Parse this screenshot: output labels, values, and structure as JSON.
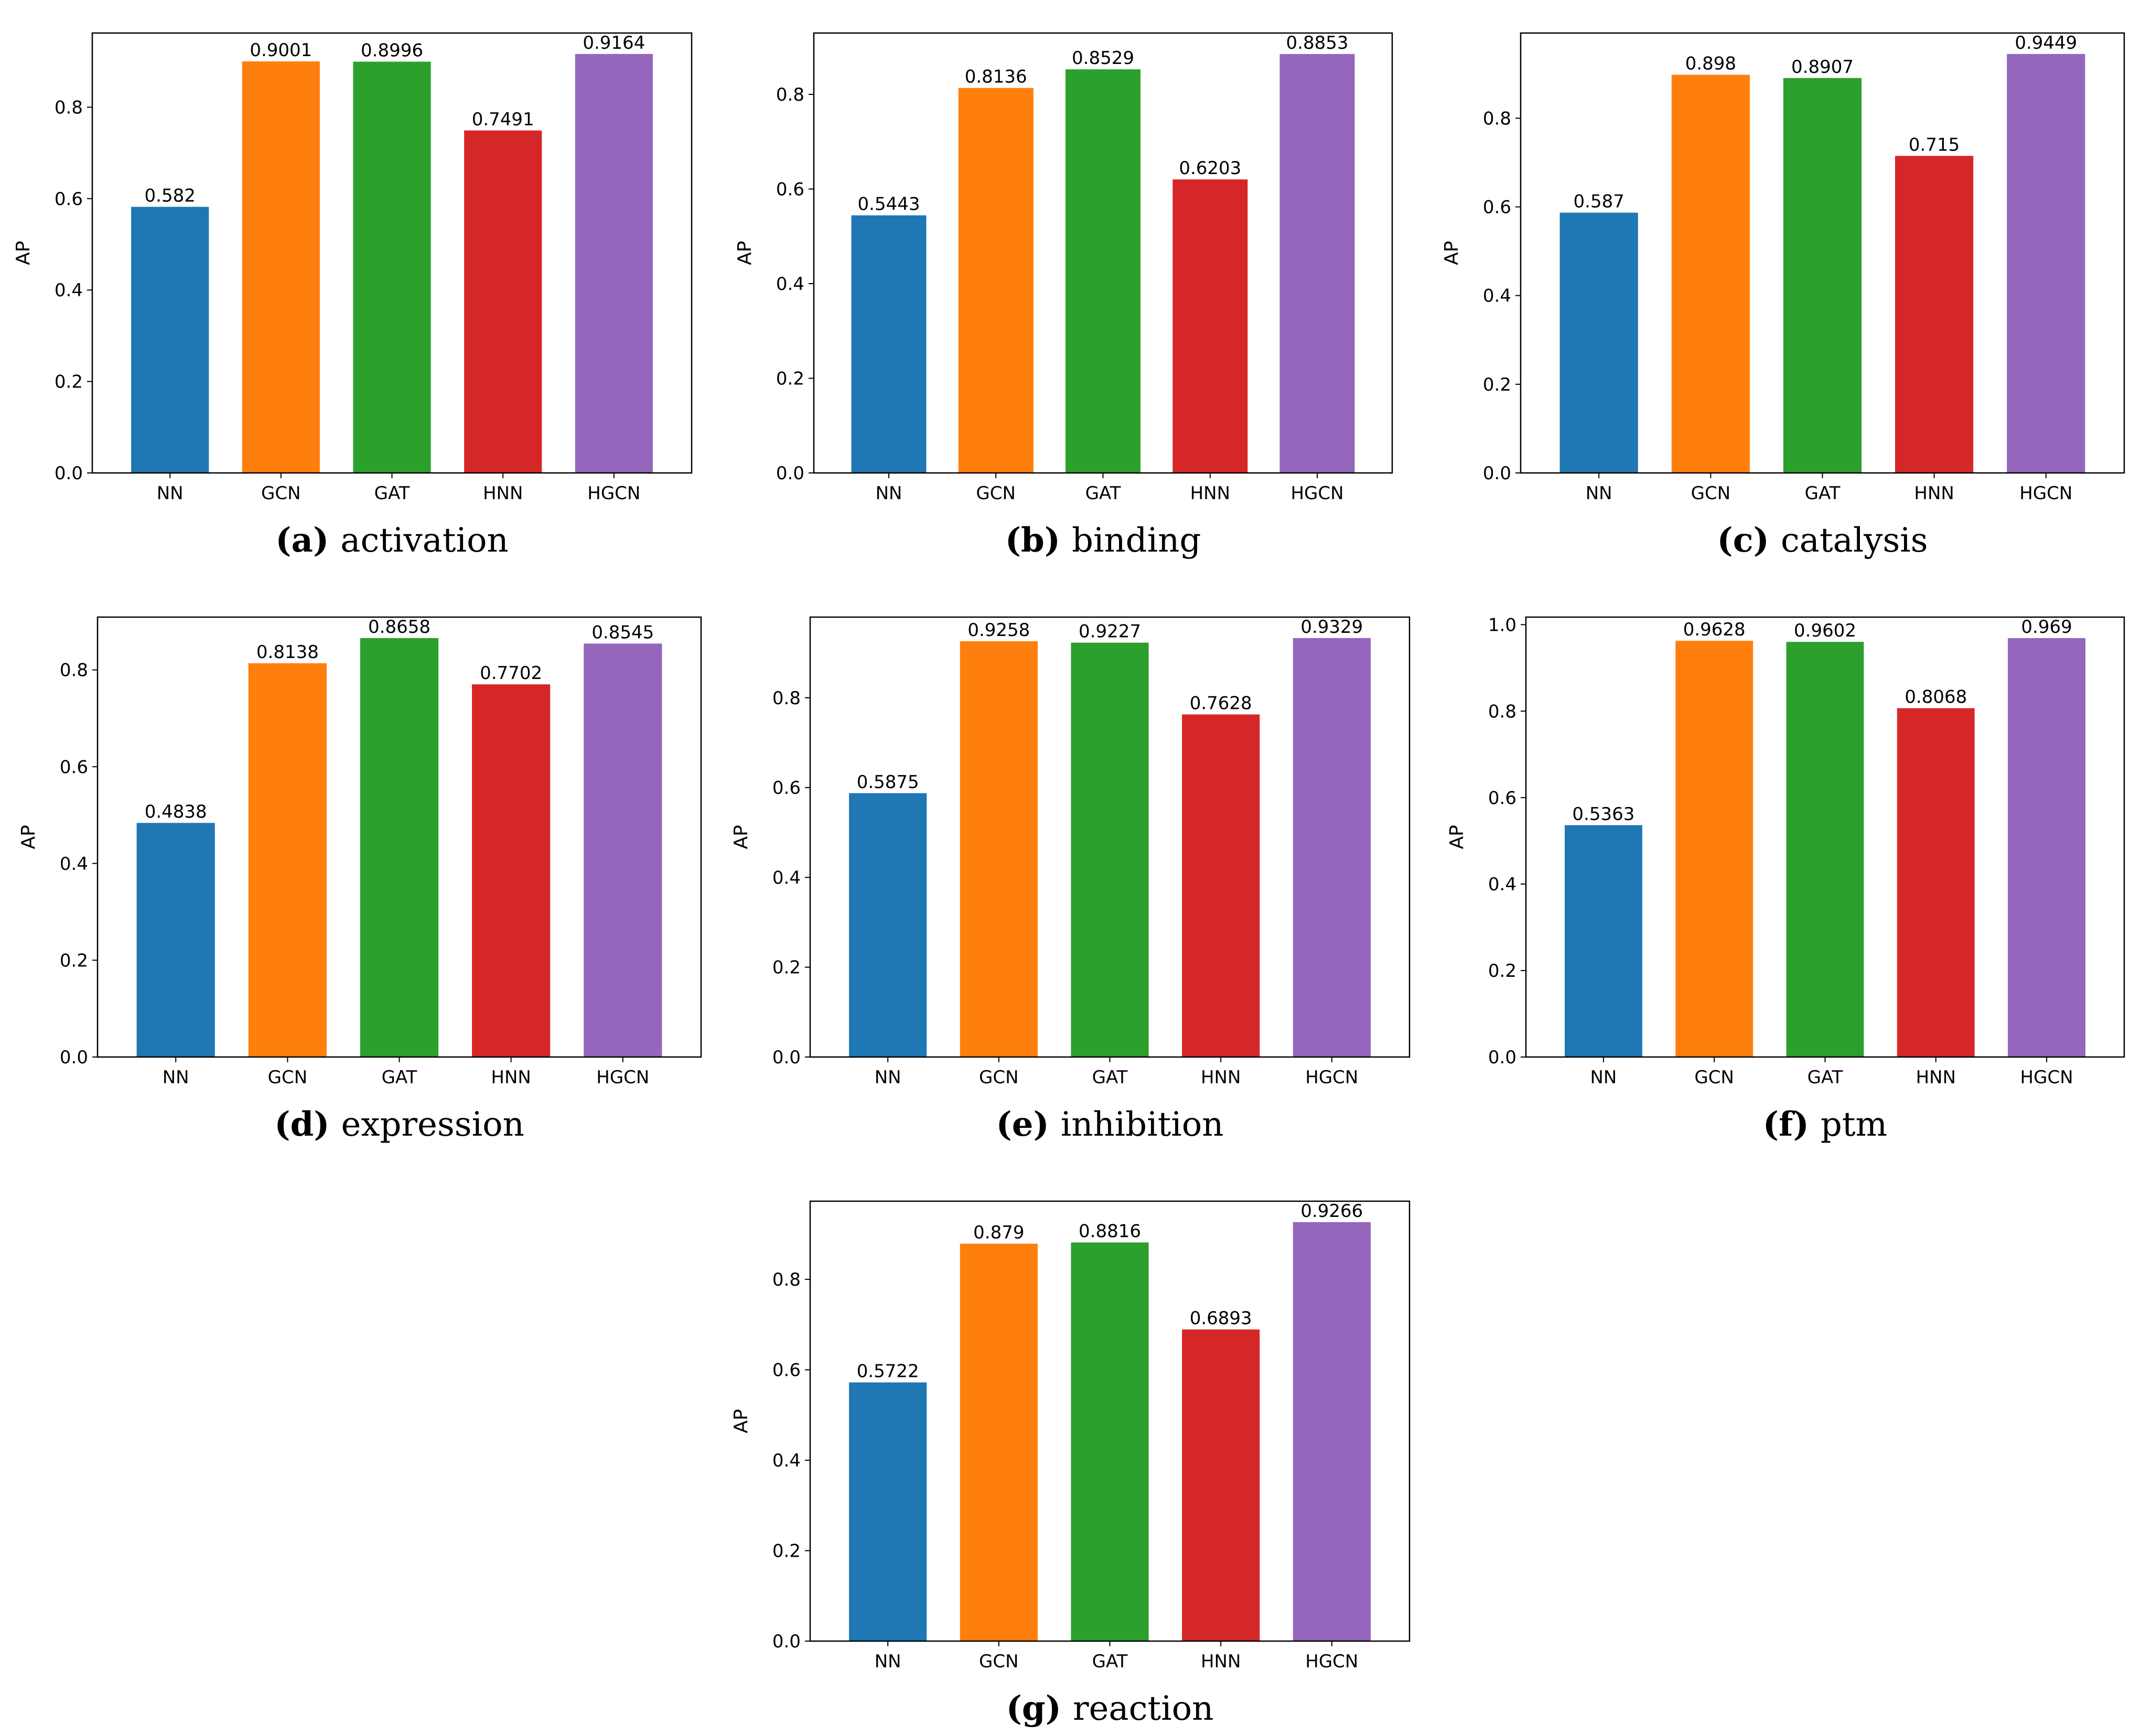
{
  "colors": {
    "NN": "#1f77b4",
    "GCN": "#ff7f0e",
    "GAT": "#2ca02c",
    "HNN": "#d62728",
    "HGCN": "#9467bd"
  },
  "chart_data": [
    {
      "type": "bar",
      "panel": "(a)",
      "caption": "activation",
      "ylabel": "AP",
      "xlabel": "",
      "categories": [
        "NN",
        "GCN",
        "GAT",
        "HNN",
        "HGCN"
      ],
      "values": [
        0.582,
        0.9001,
        0.8996,
        0.7491,
        0.9164
      ],
      "value_labels": [
        "0.582",
        "0.9001",
        "0.8996",
        "0.7491",
        "0.9164"
      ],
      "ylim": [
        0,
        0.9622
      ],
      "yticks": [
        0.0,
        0.2,
        0.4,
        0.6,
        0.8
      ],
      "ytick_labels": [
        "0.0",
        "0.2",
        "0.4",
        "0.6",
        "0.8"
      ],
      "grid": false,
      "legend": "none"
    },
    {
      "type": "bar",
      "panel": "(b)",
      "caption": "binding",
      "ylabel": "AP",
      "xlabel": "",
      "categories": [
        "NN",
        "GCN",
        "GAT",
        "HNN",
        "HGCN"
      ],
      "values": [
        0.5443,
        0.8136,
        0.8529,
        0.6203,
        0.8853
      ],
      "value_labels": [
        "0.5443",
        "0.8136",
        "0.8529",
        "0.6203",
        "0.8853"
      ],
      "ylim": [
        0,
        0.9296
      ],
      "yticks": [
        0.0,
        0.2,
        0.4,
        0.6,
        0.8
      ],
      "ytick_labels": [
        "0.0",
        "0.2",
        "0.4",
        "0.6",
        "0.8"
      ],
      "grid": false,
      "legend": "none"
    },
    {
      "type": "bar",
      "panel": "(c)",
      "caption": "catalysis",
      "ylabel": "AP",
      "xlabel": "",
      "categories": [
        "NN",
        "GCN",
        "GAT",
        "HNN",
        "HGCN"
      ],
      "values": [
        0.587,
        0.898,
        0.8907,
        0.715,
        0.9449
      ],
      "value_labels": [
        "0.587",
        "0.898",
        "0.8907",
        "0.715",
        "0.9449"
      ],
      "ylim": [
        0,
        0.9921
      ],
      "yticks": [
        0.0,
        0.2,
        0.4,
        0.6,
        0.8
      ],
      "ytick_labels": [
        "0.0",
        "0.2",
        "0.4",
        "0.6",
        "0.8"
      ],
      "grid": false,
      "legend": "none"
    },
    {
      "type": "bar",
      "panel": "(d)",
      "caption": "expression",
      "ylabel": "AP",
      "xlabel": "",
      "categories": [
        "NN",
        "GCN",
        "GAT",
        "HNN",
        "HGCN"
      ],
      "values": [
        0.4838,
        0.8138,
        0.8658,
        0.7702,
        0.8545
      ],
      "value_labels": [
        "0.4838",
        "0.8138",
        "0.8658",
        "0.7702",
        "0.8545"
      ],
      "ylim": [
        0,
        0.9091
      ],
      "yticks": [
        0.0,
        0.2,
        0.4,
        0.6,
        0.8
      ],
      "ytick_labels": [
        "0.0",
        "0.2",
        "0.4",
        "0.6",
        "0.8"
      ],
      "grid": false,
      "legend": "none"
    },
    {
      "type": "bar",
      "panel": "(e)",
      "caption": "inhibition",
      "ylabel": "AP",
      "xlabel": "",
      "categories": [
        "NN",
        "GCN",
        "GAT",
        "HNN",
        "HGCN"
      ],
      "values": [
        0.5875,
        0.9258,
        0.9227,
        0.7628,
        0.9329
      ],
      "value_labels": [
        "0.5875",
        "0.9258",
        "0.9227",
        "0.7628",
        "0.9329"
      ],
      "ylim": [
        0,
        0.9795
      ],
      "yticks": [
        0.0,
        0.2,
        0.4,
        0.6,
        0.8
      ],
      "ytick_labels": [
        "0.0",
        "0.2",
        "0.4",
        "0.6",
        "0.8"
      ],
      "grid": false,
      "legend": "none"
    },
    {
      "type": "bar",
      "panel": "(f)",
      "caption": "ptm",
      "ylabel": "AP",
      "xlabel": "",
      "categories": [
        "NN",
        "GCN",
        "GAT",
        "HNN",
        "HGCN"
      ],
      "values": [
        0.5363,
        0.9628,
        0.9602,
        0.8068,
        0.969
      ],
      "value_labels": [
        "0.5363",
        "0.9628",
        "0.9602",
        "0.8068",
        "0.969"
      ],
      "ylim": [
        0,
        1.0175
      ],
      "yticks": [
        0.0,
        0.2,
        0.4,
        0.6,
        0.8,
        1.0
      ],
      "ytick_labels": [
        "0.0",
        "0.2",
        "0.4",
        "0.6",
        "0.8",
        "1.0"
      ],
      "grid": false,
      "legend": "none"
    },
    {
      "type": "bar",
      "panel": "(g)",
      "caption": "reaction",
      "ylabel": "AP",
      "xlabel": "",
      "categories": [
        "NN",
        "GCN",
        "GAT",
        "HNN",
        "HGCN"
      ],
      "values": [
        0.5722,
        0.879,
        0.8816,
        0.6893,
        0.9266
      ],
      "value_labels": [
        "0.5722",
        "0.879",
        "0.8816",
        "0.6893",
        "0.9266"
      ],
      "ylim": [
        0,
        0.9729
      ],
      "yticks": [
        0.0,
        0.2,
        0.4,
        0.6,
        0.8
      ],
      "ytick_labels": [
        "0.0",
        "0.2",
        "0.4",
        "0.6",
        "0.8"
      ],
      "grid": false,
      "legend": "none"
    }
  ]
}
